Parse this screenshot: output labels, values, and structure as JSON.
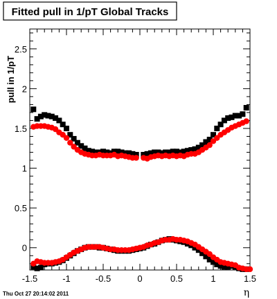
{
  "chart_data": {
    "type": "scatter",
    "title": "Fitted pull in 1/pT  Global Tracks",
    "xlabel": "η",
    "ylabel": "pull in 1/pT",
    "xlim": [
      -1.5,
      1.5
    ],
    "ylim": [
      -0.28,
      2.75
    ],
    "x_ticks": [
      -1.5,
      -1,
      -0.5,
      0,
      0.5,
      1,
      1.5
    ],
    "x_tick_labels": [
      "-1.5",
      "-1",
      "-0.5",
      "0",
      "0.5",
      "1",
      "1.5"
    ],
    "y_ticks": [
      0,
      0.5,
      1,
      1.5,
      2,
      2.5
    ],
    "y_tick_labels": [
      "0",
      "0.5",
      "1",
      "1.5",
      "2",
      "2.5"
    ],
    "grid": false,
    "legend": false,
    "timestamp": "Thu Oct 27 20:14:02 2011",
    "series": [
      {
        "marker": "square",
        "color": "#000000",
        "x": [
          -1.45,
          -1.4,
          -1.35,
          -1.3,
          -1.25,
          -1.2,
          -1.15,
          -1.1,
          -1.05,
          -1.0,
          -0.95,
          -0.9,
          -0.85,
          -0.8,
          -0.75,
          -0.7,
          -0.65,
          -0.6,
          -0.55,
          -0.5,
          -0.45,
          -0.4,
          -0.35,
          -0.3,
          -0.25,
          -0.2,
          -0.15,
          -0.1,
          -0.05,
          0.05,
          0.1,
          0.15,
          0.2,
          0.25,
          0.3,
          0.35,
          0.4,
          0.45,
          0.5,
          0.55,
          0.6,
          0.65,
          0.7,
          0.75,
          0.8,
          0.85,
          0.9,
          0.95,
          1.0,
          1.05,
          1.1,
          1.15,
          1.2,
          1.25,
          1.3,
          1.35,
          1.4,
          1.45
        ],
        "y": [
          1.74,
          1.62,
          1.65,
          1.67,
          1.66,
          1.65,
          1.63,
          1.6,
          1.55,
          1.5,
          1.42,
          1.37,
          1.32,
          1.28,
          1.25,
          1.22,
          1.21,
          1.2,
          1.2,
          1.21,
          1.2,
          1.19,
          1.21,
          1.21,
          1.2,
          1.19,
          1.19,
          1.18,
          1.17,
          1.17,
          1.18,
          1.19,
          1.2,
          1.2,
          1.19,
          1.2,
          1.2,
          1.21,
          1.21,
          1.2,
          1.21,
          1.22,
          1.23,
          1.24,
          1.26,
          1.29,
          1.33,
          1.36,
          1.42,
          1.5,
          1.55,
          1.6,
          1.63,
          1.64,
          1.66,
          1.66,
          1.68,
          1.76
        ]
      },
      {
        "marker": "circle",
        "color": "#ff0000",
        "x": [
          -1.45,
          -1.4,
          -1.35,
          -1.3,
          -1.25,
          -1.2,
          -1.15,
          -1.1,
          -1.05,
          -1.0,
          -0.95,
          -0.9,
          -0.85,
          -0.8,
          -0.75,
          -0.7,
          -0.65,
          -0.6,
          -0.55,
          -0.5,
          -0.45,
          -0.4,
          -0.35,
          -0.3,
          -0.25,
          -0.2,
          -0.15,
          -0.1,
          -0.05,
          0.05,
          0.1,
          0.15,
          0.2,
          0.25,
          0.3,
          0.35,
          0.4,
          0.45,
          0.5,
          0.55,
          0.6,
          0.65,
          0.7,
          0.75,
          0.8,
          0.85,
          0.9,
          0.95,
          1.0,
          1.05,
          1.1,
          1.15,
          1.2,
          1.25,
          1.3,
          1.35,
          1.4,
          1.45
        ],
        "y": [
          1.52,
          1.53,
          1.53,
          1.53,
          1.52,
          1.51,
          1.49,
          1.45,
          1.42,
          1.38,
          1.32,
          1.27,
          1.23,
          1.2,
          1.18,
          1.17,
          1.16,
          1.16,
          1.17,
          1.16,
          1.16,
          1.16,
          1.17,
          1.15,
          1.16,
          1.15,
          1.14,
          1.13,
          1.13,
          1.13,
          1.12,
          1.14,
          1.15,
          1.16,
          1.15,
          1.16,
          1.15,
          1.16,
          1.15,
          1.16,
          1.15,
          1.17,
          1.18,
          1.18,
          1.2,
          1.23,
          1.26,
          1.29,
          1.34,
          1.38,
          1.42,
          1.45,
          1.48,
          1.51,
          1.53,
          1.55,
          1.57,
          1.59
        ]
      },
      {
        "marker": "square",
        "color": "#000000",
        "x": [
          -1.45,
          -1.4,
          -1.35,
          -1.3,
          -1.25,
          -1.2,
          -1.15,
          -1.1,
          -1.05,
          -1.0,
          -0.95,
          -0.9,
          -0.85,
          -0.8,
          -0.75,
          -0.7,
          -0.65,
          -0.6,
          -0.55,
          -0.5,
          -0.45,
          -0.4,
          -0.35,
          -0.3,
          -0.25,
          -0.2,
          -0.15,
          -0.1,
          -0.05,
          0.0,
          0.05,
          0.1,
          0.15,
          0.2,
          0.25,
          0.3,
          0.35,
          0.4,
          0.45,
          0.5,
          0.55,
          0.6,
          0.65,
          0.7,
          0.75,
          0.8,
          0.85,
          0.9,
          0.95,
          1.0,
          1.05,
          1.1,
          1.15,
          1.2,
          1.25,
          1.3,
          1.35,
          1.4,
          1.45
        ],
        "y": [
          -0.24,
          -0.26,
          -0.25,
          -0.21,
          -0.2,
          -0.2,
          -0.19,
          -0.18,
          -0.16,
          -0.13,
          -0.1,
          -0.07,
          -0.04,
          -0.02,
          0.0,
          0.01,
          0.01,
          0.01,
          0.0,
          0.0,
          -0.01,
          -0.02,
          -0.03,
          -0.04,
          -0.04,
          -0.04,
          -0.04,
          -0.03,
          -0.02,
          -0.01,
          0.0,
          0.02,
          0.04,
          0.05,
          0.07,
          0.09,
          0.1,
          0.11,
          0.1,
          0.09,
          0.08,
          0.07,
          0.05,
          0.03,
          0.0,
          -0.03,
          -0.07,
          -0.11,
          -0.15,
          -0.18,
          -0.21,
          -0.23,
          -0.24,
          -0.24,
          -0.23,
          -0.24,
          -0.26,
          -0.27,
          -0.27
        ]
      },
      {
        "marker": "circle",
        "color": "#ff0000",
        "x": [
          -1.45,
          -1.4,
          -1.35,
          -1.3,
          -1.25,
          -1.2,
          -1.15,
          -1.1,
          -1.05,
          -1.0,
          -0.95,
          -0.9,
          -0.85,
          -0.8,
          -0.75,
          -0.7,
          -0.65,
          -0.6,
          -0.55,
          -0.5,
          -0.45,
          -0.4,
          -0.35,
          -0.3,
          -0.25,
          -0.2,
          -0.15,
          -0.1,
          -0.05,
          0.0,
          0.05,
          0.1,
          0.15,
          0.2,
          0.25,
          0.3,
          0.35,
          0.4,
          0.45,
          0.5,
          0.55,
          0.6,
          0.65,
          0.7,
          0.75,
          0.8,
          0.85,
          0.9,
          0.95,
          1.0,
          1.05,
          1.1,
          1.15,
          1.2,
          1.25,
          1.3,
          1.35,
          1.4,
          1.45,
          1.5
        ],
        "y": [
          -0.2,
          -0.17,
          -0.18,
          -0.19,
          -0.19,
          -0.19,
          -0.18,
          -0.17,
          -0.15,
          -0.12,
          -0.09,
          -0.06,
          -0.04,
          -0.02,
          0.0,
          0.01,
          0.01,
          0.01,
          0.01,
          0.0,
          -0.01,
          -0.02,
          -0.02,
          -0.03,
          -0.03,
          -0.03,
          -0.03,
          -0.02,
          -0.01,
          0.0,
          0.01,
          0.03,
          0.04,
          0.06,
          0.07,
          0.09,
          0.1,
          0.1,
          0.11,
          0.1,
          0.1,
          0.09,
          0.08,
          0.06,
          0.04,
          0.01,
          -0.02,
          -0.05,
          -0.08,
          -0.12,
          -0.15,
          -0.18,
          -0.19,
          -0.2,
          -0.21,
          -0.22,
          -0.25,
          -0.26,
          -0.27,
          -0.27
        ]
      }
    ]
  }
}
